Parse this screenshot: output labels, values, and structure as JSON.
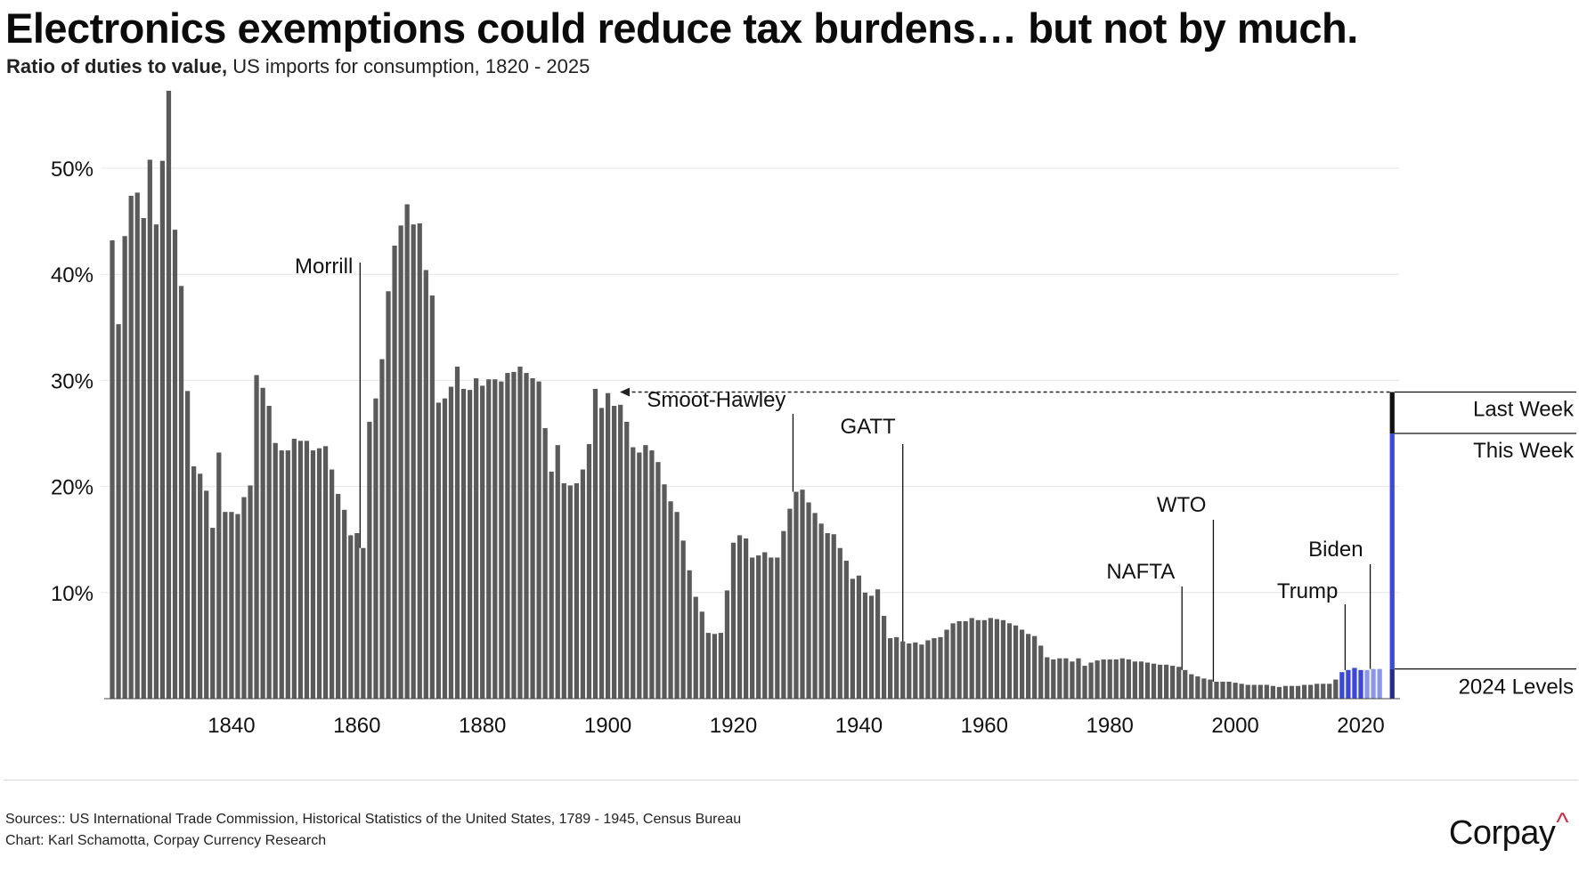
{
  "title": "Electronics exemptions could reduce tax burdens… but not by much.",
  "subtitle": {
    "lead": "Ratio of duties to value,",
    "rest": " US imports for consumption, 1820 - 2025"
  },
  "sources": {
    "line1": "Sources:: US International Trade Commission, Historical Statistics of the United States, 1789 - 1945, Census Bureau",
    "line2": "Chart: Karl Schamotta, Corpay Currency Research"
  },
  "brand": {
    "name": "Corpay",
    "mark": "^"
  },
  "colors": {
    "bar": "#5a5a5a",
    "recent_dark": "#3a46e0",
    "recent_light": "#8a96ee",
    "this_week": "#3b48e3",
    "last_week": "#111111",
    "grid": "#e6e6e6"
  },
  "chart_data": {
    "type": "bar",
    "title": "Electronics exemptions could reduce tax burdens… but not by much.",
    "subtitle": "Ratio of duties to value, US imports for consumption, 1820 - 2025",
    "xlabel": "",
    "ylabel": "",
    "xlim": [
      1820,
      2025
    ],
    "ylim": [
      0,
      57
    ],
    "y_ticks": [
      10,
      20,
      30,
      40,
      50
    ],
    "y_tick_labels": [
      "10%",
      "20%",
      "30%",
      "40%",
      "50%"
    ],
    "x_ticks": [
      1840,
      1860,
      1880,
      1900,
      1920,
      1940,
      1960,
      1980,
      2000,
      2020
    ],
    "grid": "horizontal",
    "series": [
      {
        "years_start": 1821,
        "values": [
          43.2,
          35.3,
          43.6,
          47.4,
          47.7,
          45.3,
          50.8,
          44.7,
          50.7,
          57.3,
          44.2,
          38.9,
          29.0,
          21.9,
          21.2,
          19.6,
          16.1,
          23.2,
          17.6,
          17.6,
          17.4,
          19.0,
          20.1,
          30.5,
          29.3,
          27.6,
          24.1,
          23.4,
          23.4,
          24.5,
          24.3,
          24.3,
          23.4,
          23.6,
          23.8,
          21.6,
          19.3,
          17.8,
          15.4,
          15.6,
          14.2,
          26.1,
          28.3,
          32.0,
          38.4,
          42.7,
          44.6,
          46.6,
          44.7,
          44.8,
          40.4,
          38.0,
          27.9,
          28.3,
          29.4,
          31.3,
          29.2,
          29.1,
          30.2,
          29.5,
          30.1,
          30.1,
          29.9,
          30.7,
          30.8,
          31.3,
          30.7,
          30.2,
          29.9,
          25.5,
          21.4,
          23.9,
          20.3,
          20.1,
          20.3,
          21.6,
          24.0,
          29.2,
          27.4,
          28.8,
          27.6,
          27.7,
          26.1,
          23.7,
          23.2,
          23.9,
          23.4,
          22.3,
          20.2,
          18.6,
          17.6,
          14.9,
          12.1,
          9.6,
          8.2,
          6.2,
          6.1,
          6.2,
          10.2,
          14.7,
          15.4,
          15.1,
          13.3,
          13.5,
          13.8,
          13.3,
          13.3,
          15.8,
          17.9,
          19.5,
          19.7,
          18.5,
          17.5,
          16.5,
          15.6,
          15.5,
          14.2,
          13.0,
          11.3,
          11.6,
          10.0,
          9.7,
          10.3,
          7.8,
          5.7,
          5.8,
          5.4,
          5.2,
          5.3,
          5.1,
          5.5,
          5.7,
          5.8,
          6.5,
          7.1,
          7.3,
          7.3,
          7.6,
          7.4,
          7.4,
          7.6,
          7.5,
          7.4,
          7.1,
          6.9,
          6.5,
          6.1,
          5.9,
          5.0,
          3.9,
          3.7,
          3.8,
          3.8,
          3.5,
          3.8,
          3.1,
          3.4,
          3.6,
          3.7,
          3.7,
          3.7,
          3.8,
          3.7,
          3.5,
          3.5,
          3.4,
          3.3,
          3.2,
          3.2,
          3.1,
          3.0,
          2.7,
          2.3,
          2.1,
          1.9,
          1.8,
          1.6,
          1.6,
          1.6,
          1.5,
          1.4,
          1.3,
          1.3,
          1.3,
          1.3,
          1.2,
          1.1,
          1.2,
          1.2,
          1.2,
          1.3,
          1.3,
          1.4,
          1.4,
          1.4,
          1.8,
          2.5,
          2.7,
          2.9,
          2.7,
          2.7,
          2.8,
          2.8
        ]
      }
    ],
    "highlight": {
      "recent_years": [
        2017,
        2018,
        2019,
        2020,
        2021,
        2022,
        2023,
        2024
      ],
      "scenario_year": 2025,
      "levels": [
        {
          "label": "2024 Levels",
          "value": 2.8
        },
        {
          "label": "This Week",
          "value": 25.0
        },
        {
          "label": "Last Week",
          "value": 28.9
        }
      ]
    },
    "annotations": [
      {
        "label": "Morrill",
        "year": 1860.5
      },
      {
        "label": "Smoot-Hawley",
        "year": 1929.5
      },
      {
        "label": "GATT",
        "year": 1947
      },
      {
        "label": "NAFTA",
        "year": 1991.5
      },
      {
        "label": "WTO",
        "year": 1996.5
      },
      {
        "label": "Trump",
        "year": 2017.5
      },
      {
        "label": "Biden",
        "year": 2021.5
      }
    ]
  }
}
